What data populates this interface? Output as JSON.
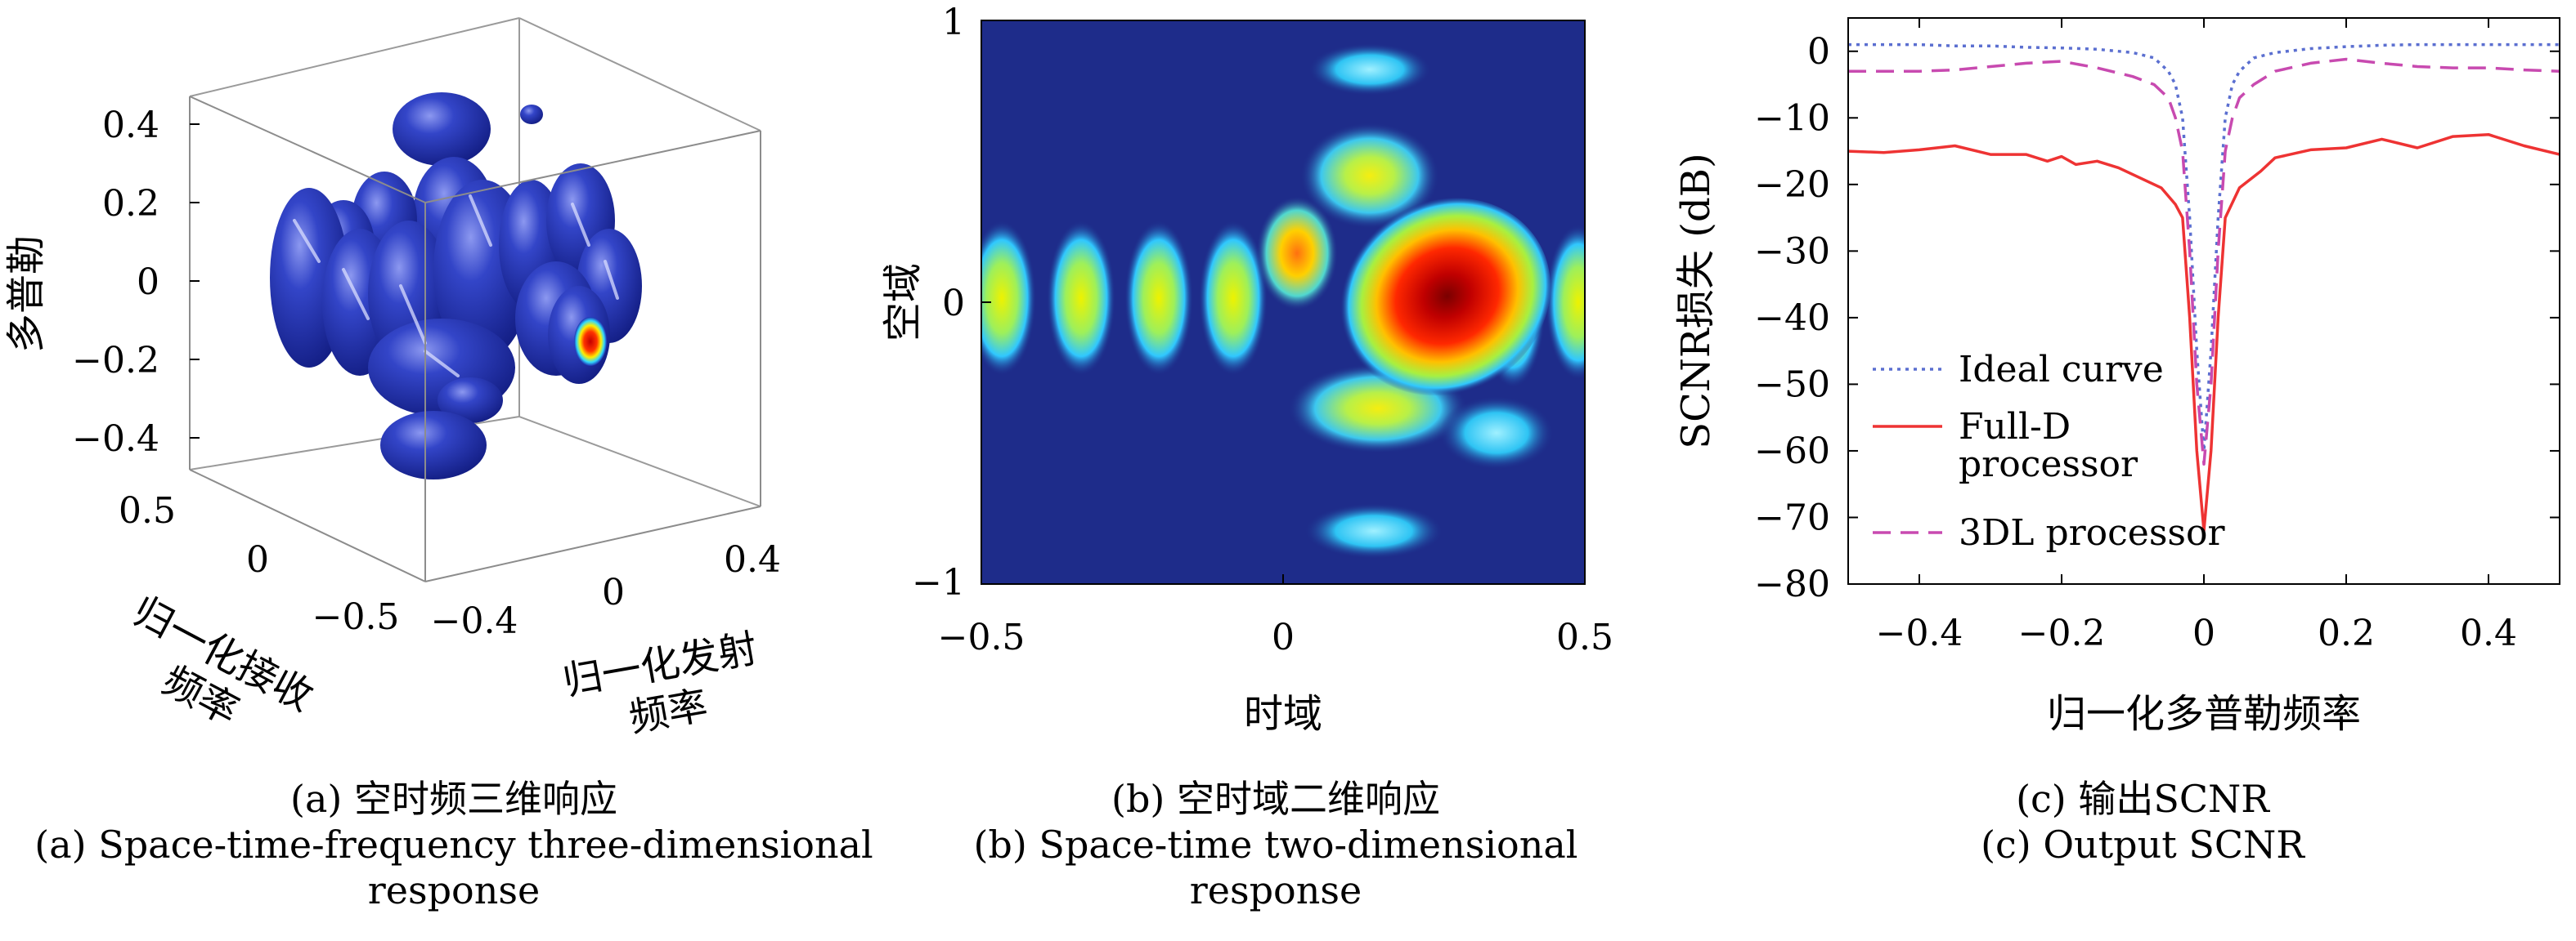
{
  "panels": {
    "a": {
      "caption_cn": "(a) 空时频三维响应",
      "caption_en_1": "(a) Space-time-frequency three-dimensional",
      "caption_en_2": "response",
      "z_label": "多普勒",
      "x_label_1": "归一化接收",
      "x_label_2": "频率",
      "y_label_1": "归一化发射",
      "y_label_2": "频率",
      "z_ticks": [
        "0.4",
        "0.2",
        "0",
        "−0.2",
        "−0.4"
      ],
      "x_ticks": [
        "0.5",
        "0",
        "−0.5"
      ],
      "y_ticks": [
        "−0.4",
        "0",
        "0.4"
      ]
    },
    "b": {
      "caption_cn": "(b) 空时域二维响应",
      "caption_en_1": "(b) Space-time two-dimensional",
      "caption_en_2": "response",
      "x_label": "时域",
      "y_label": "空域"
    },
    "c": {
      "caption_cn": "(c) 输出SCNR",
      "caption_en": "(c) Output SCNR"
    }
  },
  "chart_data": [
    {
      "type": "other",
      "note_type": "3d isosurface",
      "xlabel": "归一化接收频率",
      "ylabel": "归一化发射频率",
      "zlabel": "多普勒",
      "x_ticks": [
        "0.5",
        "0",
        "−0.5"
      ],
      "y_ticks": [
        "−0.4",
        "0",
        "0.4"
      ],
      "z_ticks": [
        "0.4",
        "0.2",
        "0",
        "−0.2",
        "−0.4"
      ],
      "colors": {
        "surface": "#1f2fb0",
        "peak": "#e01010"
      }
    },
    {
      "type": "heatmap",
      "xlabel": "时域",
      "ylabel": "空域",
      "xlim": [
        -0.5,
        0.5
      ],
      "ylim": [
        -1,
        1
      ],
      "x_ticks": [
        "−0.5",
        "0",
        "0.5"
      ],
      "y_ticks": [
        "1",
        "0",
        "−1"
      ],
      "colormap": "jet",
      "background": "#1e2c8a"
    },
    {
      "type": "line",
      "xlabel": "归一化多普勒频率",
      "ylabel": "SCNR损失 (dB)",
      "xlim": [
        -0.5,
        0.5
      ],
      "ylim": [
        -80,
        5
      ],
      "x_ticks": [
        "−0.4",
        "−0.2",
        "0",
        "0.2",
        "0.4"
      ],
      "y_ticks": [
        "0",
        "−10",
        "−20",
        "−30",
        "−40",
        "−50",
        "−60",
        "−70",
        "−80"
      ],
      "x_tick_values": [
        -0.4,
        -0.2,
        0,
        0.2,
        0.4
      ],
      "y_tick_values": [
        0,
        -10,
        -20,
        -30,
        -40,
        -50,
        -60,
        -70,
        -80
      ],
      "legend_position": "bottom-left",
      "series": [
        {
          "name": "Ideal curve",
          "color": "#5b6fd0",
          "dash": "dotted",
          "x": [
            -0.5,
            -0.45,
            -0.4,
            -0.35,
            -0.3,
            -0.25,
            -0.2,
            -0.15,
            -0.1,
            -0.07,
            -0.05,
            -0.04,
            -0.03,
            -0.02,
            -0.01,
            0,
            0.01,
            0.02,
            0.03,
            0.04,
            0.05,
            0.07,
            0.1,
            0.15,
            0.2,
            0.25,
            0.3,
            0.35,
            0.4,
            0.45,
            0.5
          ],
          "values": [
            1,
            1,
            1,
            0.8,
            0.8,
            0.6,
            0.5,
            0.3,
            -0.2,
            -1,
            -3,
            -5,
            -10,
            -25,
            -45,
            -60,
            -45,
            -25,
            -10,
            -5,
            -3,
            -1,
            -0.2,
            0.4,
            0.7,
            0.9,
            1,
            1,
            1,
            1,
            1
          ]
        },
        {
          "name": "Full-D processor",
          "legend_lines": [
            "Full-D",
            "processor"
          ],
          "color": "#ee3333",
          "dash": "solid",
          "x": [
            -0.5,
            -0.45,
            -0.4,
            -0.35,
            -0.3,
            -0.25,
            -0.22,
            -0.2,
            -0.18,
            -0.15,
            -0.12,
            -0.09,
            -0.06,
            -0.04,
            -0.03,
            -0.02,
            -0.01,
            0,
            0.01,
            0.02,
            0.03,
            0.05,
            0.08,
            0.1,
            0.15,
            0.2,
            0.25,
            0.3,
            0.35,
            0.4,
            0.45,
            0.5
          ],
          "values": [
            -15,
            -15.2,
            -14.8,
            -14.2,
            -15.5,
            -15.5,
            -16.5,
            -15.8,
            -17,
            -16.5,
            -17.5,
            -19,
            -20.5,
            -23,
            -25,
            -40,
            -60,
            -72,
            -60,
            -40,
            -25,
            -20.5,
            -18,
            -16,
            -14.8,
            -14.5,
            -13.2,
            -14.5,
            -12.8,
            -12.5,
            -14.2,
            -15.5
          ]
        },
        {
          "name": "3DL processor",
          "color": "#c84ab0",
          "dash": "dashed",
          "x": [
            -0.5,
            -0.45,
            -0.4,
            -0.35,
            -0.3,
            -0.25,
            -0.2,
            -0.15,
            -0.1,
            -0.07,
            -0.05,
            -0.04,
            -0.03,
            -0.02,
            -0.01,
            0,
            0.01,
            0.02,
            0.03,
            0.04,
            0.05,
            0.07,
            0.1,
            0.15,
            0.2,
            0.25,
            0.3,
            0.35,
            0.4,
            0.45,
            0.5
          ],
          "values": [
            -3,
            -3,
            -3,
            -2.8,
            -2.3,
            -1.8,
            -1.5,
            -2.5,
            -3.8,
            -5,
            -7,
            -10,
            -15,
            -30,
            -50,
            -62,
            -50,
            -30,
            -15,
            -10,
            -7,
            -5,
            -3,
            -1.8,
            -1.2,
            -1.8,
            -2.3,
            -2.5,
            -2.5,
            -2.8,
            -3
          ]
        }
      ]
    }
  ]
}
